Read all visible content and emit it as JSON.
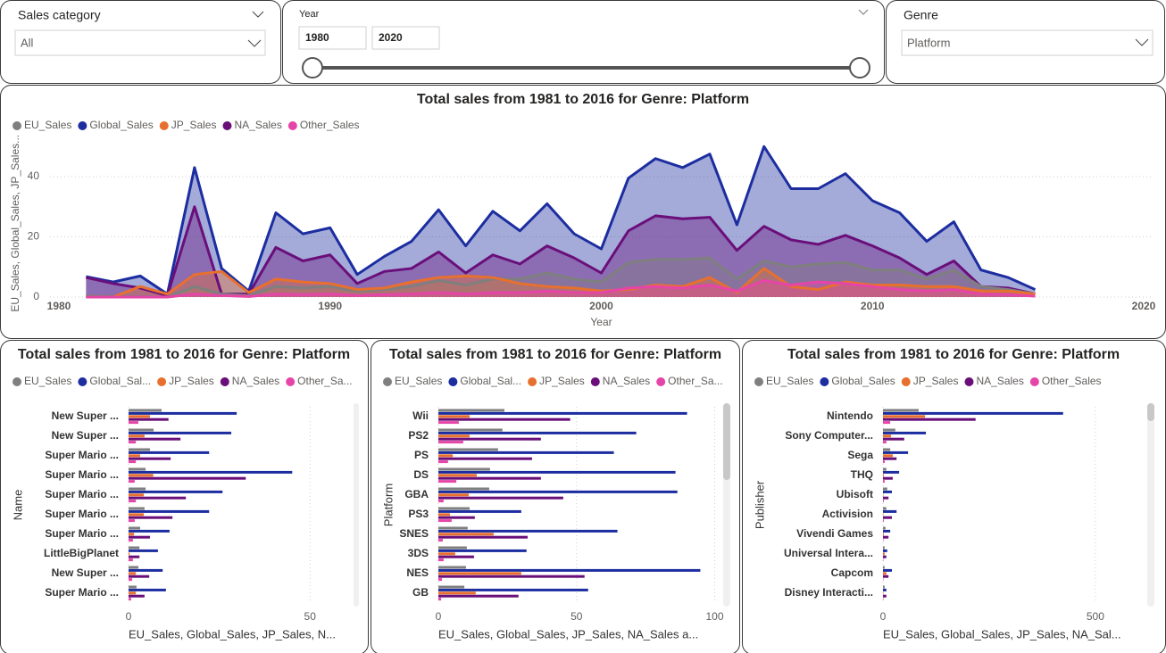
{
  "slicers": {
    "sales_category": {
      "label": "Sales category",
      "value": "All"
    },
    "year": {
      "label": "Year",
      "start": 1980,
      "end": 2020
    },
    "genre": {
      "label": "Genre",
      "value": "Platform"
    }
  },
  "chart_data": [
    {
      "type": "area",
      "title": "Total sales from 1981 to 2016 for Genre: Platform",
      "x_label": "Year",
      "y_label": "EU_Sales, Global_Sales, JP_Sales...",
      "x": [
        1981,
        1982,
        1983,
        1984,
        1985,
        1986,
        1987,
        1988,
        1989,
        1990,
        1991,
        1992,
        1993,
        1994,
        1995,
        1996,
        1997,
        1998,
        1999,
        2000,
        2001,
        2002,
        2003,
        2004,
        2005,
        2006,
        2007,
        2008,
        2009,
        2010,
        2011,
        2012,
        2013,
        2014,
        2015,
        2016
      ],
      "series": [
        {
          "name": "EU_Sales",
          "color": "#7f7f7f",
          "values": [
            0.5,
            0.3,
            0.2,
            0,
            3.5,
            1,
            0.5,
            3.5,
            3,
            3.5,
            2,
            2.5,
            3.5,
            5.5,
            4,
            6,
            6,
            8,
            6,
            5,
            11.5,
            12.5,
            12.5,
            13,
            6,
            12,
            10,
            11,
            11.5,
            9,
            9,
            6,
            9,
            3.5,
            2.5,
            1
          ]
        },
        {
          "name": "Global_Sales",
          "color": "#1c2da0",
          "values": [
            6.8,
            5,
            7,
            1,
            43,
            9.5,
            2,
            28,
            21,
            23,
            7.5,
            13.5,
            18.5,
            29,
            17,
            28.5,
            22,
            31,
            21,
            16,
            39.5,
            46,
            43,
            47.5,
            24,
            50,
            36,
            36,
            41,
            32,
            28,
            18.5,
            25,
            9,
            6.5,
            2.5
          ]
        },
        {
          "name": "JP_Sales",
          "color": "#e8702e",
          "values": [
            0,
            0,
            3.5,
            1,
            7.5,
            8.5,
            1.5,
            6,
            5,
            4.5,
            2.5,
            3,
            5,
            6.5,
            7,
            6.5,
            4.5,
            3.5,
            3,
            2,
            2.5,
            4,
            3.5,
            6.5,
            1.5,
            9.5,
            3.5,
            2.5,
            5,
            4,
            4,
            3.5,
            3.5,
            2,
            2,
            1
          ]
        },
        {
          "name": "NA_Sales",
          "color": "#6a0f7a",
          "values": [
            6.5,
            4.5,
            3,
            0.5,
            30,
            1,
            1,
            16.5,
            12,
            14,
            4.5,
            8.5,
            9.5,
            15,
            8,
            14,
            11,
            17,
            13,
            8,
            22,
            27,
            26,
            26.5,
            15.5,
            23.5,
            19,
            17.5,
            20.5,
            17,
            13,
            7.5,
            12,
            3.5,
            3,
            1
          ]
        },
        {
          "name": "Other_Sales",
          "color": "#e645a8",
          "values": [
            0,
            0,
            0,
            0,
            1,
            0.5,
            0.2,
            1,
            0.8,
            1,
            0.5,
            0.8,
            1,
            1.5,
            1,
            1.5,
            1.5,
            2,
            1.5,
            1.5,
            3,
            3.5,
            3,
            4,
            2,
            5.5,
            4,
            5,
            4.5,
            3.5,
            2.5,
            2,
            2.5,
            1,
            0.8,
            0.3
          ]
        }
      ],
      "xlim": [
        1980,
        2020
      ],
      "xticks": [
        1980,
        1990,
        2000,
        2010,
        2020
      ],
      "ylim": [
        0,
        52
      ],
      "yticks": [
        0,
        20,
        40
      ],
      "grid": true,
      "legend": "top-left"
    },
    {
      "type": "hbar",
      "title": "Total sales from 1981 to 2016 for Genre: Platform",
      "y_label": "Name",
      "x_label": "EU_Sales, Global_Sales, JP_Sales, N...",
      "categories": [
        "New Super ...",
        "New Super ...",
        "Super Mario ...",
        "Super Mario ...",
        "Super Mario ...",
        "Super Mario ...",
        "Super Mario ...",
        "LittleBigPlanet",
        "New Super ...",
        "Super Mario ..."
      ],
      "series": [
        {
          "name": "EU_Sales",
          "color": "#7f7f7f",
          "values": [
            9.1,
            6.9,
            5.9,
            4.7,
            4.7,
            4.4,
            3.2,
            3,
            2.7,
            2.2
          ]
        },
        {
          "name": "Global_Sal...",
          "color": "#1c2da0",
          "values": [
            29.8,
            28.3,
            22.2,
            45.1,
            25.9,
            22.2,
            11.3,
            8.1,
            9.4,
            10.3
          ]
        },
        {
          "name": "JP_Sales",
          "color": "#e8702e",
          "values": [
            5.9,
            4.4,
            3.2,
            6.8,
            4.2,
            4.2,
            1.5,
            0.3,
            2,
            2
          ]
        },
        {
          "name": "NA_Sales",
          "color": "#6a0f7a",
          "values": [
            11,
            14.3,
            11.6,
            32.3,
            15.8,
            12.1,
            5.9,
            3,
            5.7,
            4.4
          ]
        },
        {
          "name": "Other_Sa...",
          "color": "#e645a8",
          "values": [
            2.7,
            2,
            2,
            1.7,
            2,
            1.7,
            1.2,
            1.2,
            1,
            0.7
          ]
        }
      ],
      "xlim": [
        0,
        62
      ],
      "xticks": [
        0,
        50
      ],
      "grid": true,
      "legend": "top-left"
    },
    {
      "type": "hbar",
      "title": "Total sales from 1981 to 2016 for Genre: Platform",
      "y_label": "Platform",
      "x_label": "EU_Sales, Global_Sales, JP_Sales, NA_Sales a...",
      "categories": [
        "Wii",
        "PS2",
        "PS",
        "DS",
        "GBA",
        "PS3",
        "SNES",
        "3DS",
        "NES",
        "GB"
      ],
      "series": [
        {
          "name": "EU_Sales",
          "color": "#7f7f7f",
          "values": [
            23.9,
            23.2,
            21.6,
            18.7,
            18.4,
            11.3,
            10.6,
            10.3,
            10,
            9.4
          ]
        },
        {
          "name": "Global_Sal...",
          "color": "#1c2da0",
          "values": [
            90,
            71.6,
            63.5,
            85.8,
            86.5,
            30,
            64.8,
            31.9,
            94.8,
            54.2
          ]
        },
        {
          "name": "JP_Sales",
          "color": "#e8702e",
          "values": [
            11.3,
            11.3,
            5.2,
            13.9,
            11,
            4.2,
            20,
            6.1,
            30,
            13.5
          ]
        },
        {
          "name": "NA_Sales",
          "color": "#6a0f7a",
          "values": [
            47.7,
            37.1,
            33.9,
            37.1,
            45.2,
            13.2,
            32.3,
            12.9,
            52.9,
            29
          ]
        },
        {
          "name": "Other_Sa...",
          "color": "#e645a8",
          "values": [
            7.4,
            9,
            3.5,
            6.5,
            1.9,
            4.8,
            1.6,
            1.9,
            1.3,
            1
          ]
        }
      ],
      "xlim": [
        0,
        105
      ],
      "xticks": [
        0,
        50,
        100
      ],
      "grid": true,
      "legend": "top-left"
    },
    {
      "type": "hbar",
      "title": "Total sales from 1981 to 2016 for Genre: Platform",
      "y_label": "Publisher",
      "x_label": "EU_Sales, Global_Sales, JP_Sales, NA_Sal...",
      "categories": [
        "Nintendo",
        "Sony Computer...",
        "Sega",
        "THQ",
        "Ubisoft",
        "Activision",
        "Vivendi Games",
        "Universal Intera...",
        "Capcom",
        "Disney Interacti..."
      ],
      "series": [
        {
          "name": "EU_Sales",
          "color": "#7f7f7f",
          "values": [
            84,
            29,
            17,
            8,
            10,
            8,
            6,
            4,
            4,
            4
          ]
        },
        {
          "name": "Global_Sales",
          "color": "#1c2da0",
          "values": [
            424,
            101,
            59,
            38,
            21,
            32,
            17,
            10,
            21,
            8
          ]
        },
        {
          "name": "JP_Sales",
          "color": "#e8702e",
          "values": [
            99,
            19,
            23,
            2,
            1,
            1,
            2,
            4,
            8,
            1
          ]
        },
        {
          "name": "NA_Sales",
          "color": "#6a0f7a",
          "values": [
            218,
            50,
            32,
            23,
            13,
            21,
            13,
            8,
            13,
            8
          ]
        },
        {
          "name": "Other_Sales",
          "color": "#e645a8",
          "values": [
            17,
            8,
            4,
            4,
            2,
            2,
            1,
            1,
            1,
            1
          ]
        }
      ],
      "xlim": [
        0,
        620
      ],
      "xticks": [
        0,
        500
      ],
      "grid": true,
      "legend": "top-left"
    }
  ]
}
